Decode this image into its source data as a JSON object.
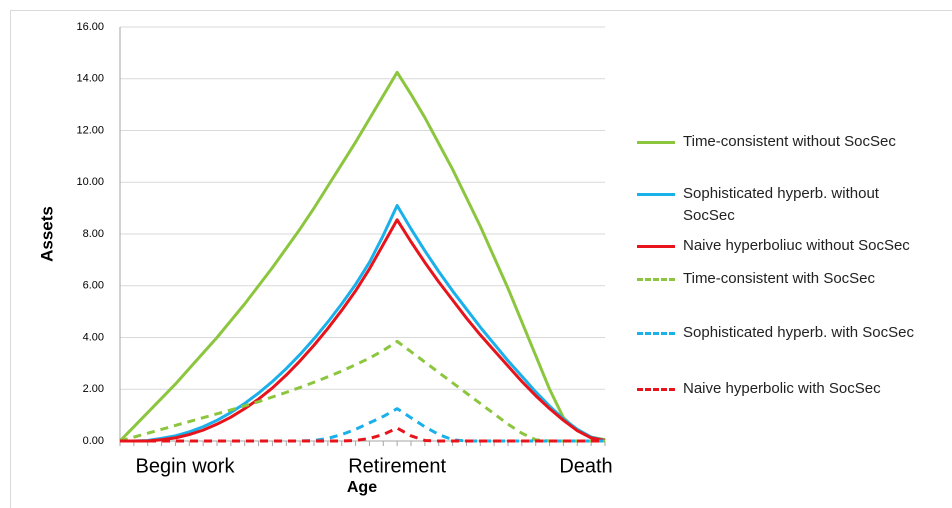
{
  "chart_data": {
    "type": "line",
    "y_label": "Assets",
    "x_label": "Age",
    "categories": [
      "Begin work",
      null,
      null,
      null,
      null,
      null,
      null,
      null,
      null,
      null,
      null,
      null,
      null,
      null,
      null,
      null,
      null,
      null,
      null,
      null,
      "Retirement",
      null,
      null,
      null,
      null,
      null,
      null,
      null,
      null,
      null,
      null,
      null,
      null,
      null,
      null,
      "Death"
    ],
    "ylim": [
      0,
      16
    ],
    "yticks": [
      {
        "value": 0,
        "label": "0.00"
      },
      {
        "value": 2,
        "label": "2.00"
      },
      {
        "value": 4,
        "label": "4.00"
      },
      {
        "value": 6,
        "label": "6.00"
      },
      {
        "value": 8,
        "label": "8.00"
      },
      {
        "value": 10,
        "label": "10.00"
      },
      {
        "value": 12,
        "label": "12.00"
      },
      {
        "value": 14,
        "label": "14.00"
      },
      {
        "value": 16,
        "label": "16.00"
      }
    ],
    "grid": true,
    "legend": "right",
    "series": [
      {
        "name": "Time-consistent without SocSec",
        "color": "#8cc63f",
        "dashed": false,
        "values": [
          0,
          0.55,
          1.1,
          1.65,
          2.2,
          2.8,
          3.4,
          4.0,
          4.65,
          5.3,
          6.0,
          6.7,
          7.45,
          8.2,
          9.0,
          9.85,
          10.7,
          11.55,
          12.45,
          13.35,
          14.25,
          13.4,
          12.5,
          11.5,
          10.5,
          9.4,
          8.3,
          7.1,
          5.9,
          4.6,
          3.3,
          2.0,
          0.9,
          0.4,
          0.15,
          0.05
        ]
      },
      {
        "name": "Sophisticated hyperb. without SocSec",
        "color": "#1ab0ea",
        "dashed": false,
        "values": [
          0,
          0,
          0.02,
          0.1,
          0.2,
          0.35,
          0.55,
          0.8,
          1.1,
          1.45,
          1.85,
          2.3,
          2.8,
          3.35,
          3.95,
          4.6,
          5.3,
          6.05,
          6.9,
          7.95,
          9.1,
          8.2,
          7.35,
          6.55,
          5.8,
          5.1,
          4.4,
          3.75,
          3.1,
          2.5,
          1.9,
          1.35,
          0.85,
          0.45,
          0.15,
          0.02
        ]
      },
      {
        "name": "Naive hyperboliuc without SocSec",
        "color": "#e8141b",
        "dashed": false,
        "values": [
          0,
          0,
          0,
          0.05,
          0.12,
          0.25,
          0.42,
          0.65,
          0.92,
          1.25,
          1.62,
          2.05,
          2.55,
          3.1,
          3.7,
          4.35,
          5.05,
          5.8,
          6.65,
          7.6,
          8.55,
          7.7,
          6.9,
          6.15,
          5.45,
          4.75,
          4.1,
          3.5,
          2.9,
          2.3,
          1.75,
          1.25,
          0.8,
          0.4,
          0.12,
          0.02
        ]
      },
      {
        "name": "Time-consistent with SocSec",
        "color": "#8cc63f",
        "dashed": true,
        "values": [
          0,
          0.15,
          0.3,
          0.45,
          0.6,
          0.75,
          0.9,
          1.05,
          1.2,
          1.36,
          1.52,
          1.7,
          1.88,
          2.07,
          2.27,
          2.48,
          2.7,
          2.95,
          3.2,
          3.5,
          3.85,
          3.45,
          3.05,
          2.65,
          2.25,
          1.85,
          1.45,
          1.05,
          0.65,
          0.3,
          0.05,
          0,
          0,
          0,
          0,
          0
        ]
      },
      {
        "name": "Sophisticated hyperb. with SocSec",
        "color": "#1ab0ea",
        "dashed": true,
        "values": [
          0,
          0,
          0,
          0,
          0,
          0,
          0,
          0,
          0,
          0,
          0,
          0,
          0,
          0,
          0.02,
          0.1,
          0.25,
          0.45,
          0.7,
          0.95,
          1.25,
          0.9,
          0.55,
          0.25,
          0.05,
          0,
          0,
          0,
          0,
          0,
          0,
          0,
          0,
          0,
          0,
          0
        ]
      },
      {
        "name": "Naive hyperbolic with SocSec",
        "color": "#e8141b",
        "dashed": true,
        "values": [
          0,
          0,
          0,
          0,
          0,
          0,
          0,
          0,
          0,
          0,
          0,
          0,
          0,
          0,
          0,
          0,
          0,
          0.02,
          0.1,
          0.25,
          0.5,
          0.2,
          0.02,
          0,
          0,
          0,
          0,
          0,
          0,
          0,
          0,
          0,
          0,
          0,
          0,
          0
        ]
      }
    ]
  }
}
